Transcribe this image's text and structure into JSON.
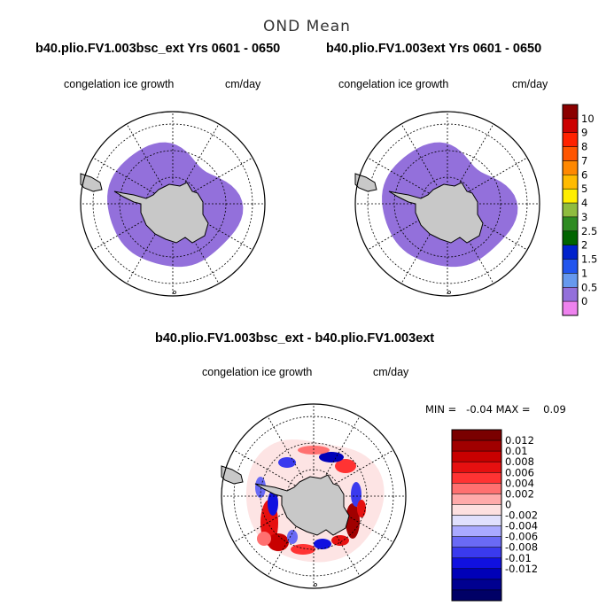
{
  "main_title": "OND Mean",
  "panel1": {
    "title": "b40.plio.FV1.003bsc_ext  Yrs 0601 - 0650",
    "variable": "congelation ice growth",
    "units": "cm/day"
  },
  "panel2": {
    "title": "b40.plio.FV1.003ext  Yrs 0601 - 0650",
    "variable": "congelation ice growth",
    "units": "cm/day"
  },
  "panel3": {
    "title": "b40.plio.FV1.003bsc_ext - b40.plio.FV1.003ext",
    "variable": "congelation ice growth",
    "units": "cm/day",
    "minmax": "MIN =   -0.04 MAX =    0.09"
  },
  "colorbar_top": {
    "labels": [
      "10",
      "9",
      "8",
      "7",
      "6",
      "5",
      "4",
      "3",
      "2.5",
      "2",
      "1.5",
      "1",
      "0.5",
      "0"
    ],
    "colors": [
      "#8b0000",
      "#cc0000",
      "#ff2200",
      "#ff5500",
      "#ff8800",
      "#ffbb00",
      "#ffee00",
      "#8fbc3f",
      "#2e8b22",
      "#006400",
      "#0022cc",
      "#2255ee",
      "#6699ee",
      "#9370db",
      "#ee82ee"
    ]
  },
  "colorbar_diff": {
    "labels": [
      "0.012",
      "0.01",
      "0.008",
      "0.006",
      "0.004",
      "0.002",
      "0",
      "-0.002",
      "-0.004",
      "-0.006",
      "-0.008",
      "-0.01",
      "-0.012"
    ],
    "colors": [
      "#7a0000",
      "#a00000",
      "#c80000",
      "#e61010",
      "#ff3333",
      "#ff7070",
      "#ffaaaa",
      "#fde0e0",
      "#e0e0fd",
      "#aaaaff",
      "#6a6af5",
      "#3a3aee",
      "#1010e0",
      "#0000b8",
      "#000090",
      "#000066"
    ]
  },
  "colors": {
    "sea_ice": "#9370db",
    "land": "#c8c8c8"
  }
}
